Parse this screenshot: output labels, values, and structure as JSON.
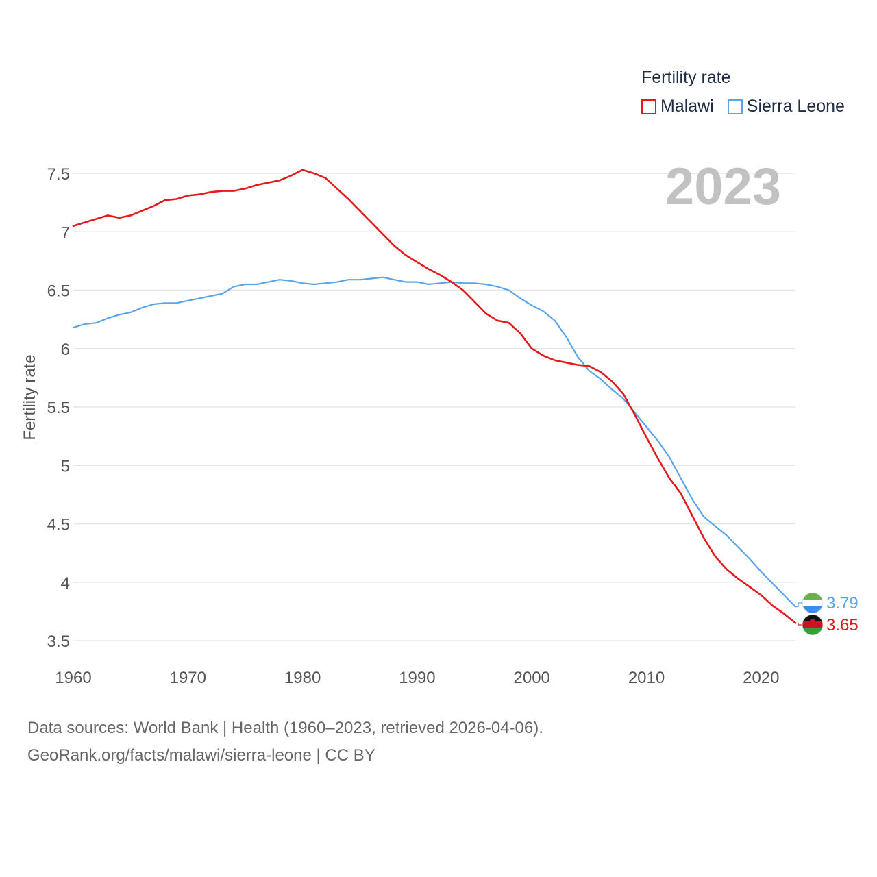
{
  "chart_data": {
    "type": "line",
    "legend_title": "Fertility rate",
    "ylabel": "Fertility rate",
    "xlabel": "",
    "year_label": "2023",
    "ylim": [
      3.5,
      7.5
    ],
    "xlim": [
      1960,
      2023
    ],
    "yticks": [
      3.5,
      4,
      4.5,
      5,
      5.5,
      6,
      6.5,
      7,
      7.5
    ],
    "ytick_labels": [
      "3.5",
      "4",
      "4.5",
      "5",
      "5.5",
      "6",
      "6.5",
      "7",
      "7.5"
    ],
    "xticks": [
      1960,
      1970,
      1980,
      1990,
      2000,
      2010,
      2020
    ],
    "xtick_labels": [
      "1960",
      "1970",
      "1980",
      "1990",
      "2000",
      "2010",
      "2020"
    ],
    "legend_position": "top-right",
    "grid": true,
    "x": [
      1960,
      1961,
      1962,
      1963,
      1964,
      1965,
      1966,
      1967,
      1968,
      1969,
      1970,
      1971,
      1972,
      1973,
      1974,
      1975,
      1976,
      1977,
      1978,
      1979,
      1980,
      1981,
      1982,
      1983,
      1984,
      1985,
      1986,
      1987,
      1988,
      1989,
      1990,
      1991,
      1992,
      1993,
      1994,
      1995,
      1996,
      1997,
      1998,
      1999,
      2000,
      2001,
      2002,
      2003,
      2004,
      2005,
      2006,
      2007,
      2008,
      2009,
      2010,
      2011,
      2012,
      2013,
      2014,
      2015,
      2016,
      2017,
      2018,
      2019,
      2020,
      2021,
      2022,
      2023
    ],
    "series": [
      {
        "name": "Malawi",
        "color": "#e41a1c",
        "end_label": "3.65",
        "flag": "malawi-flag-icon",
        "values": [
          7.05,
          7.08,
          7.11,
          7.14,
          7.12,
          7.14,
          7.18,
          7.22,
          7.27,
          7.28,
          7.31,
          7.32,
          7.34,
          7.35,
          7.35,
          7.37,
          7.4,
          7.42,
          7.44,
          7.48,
          7.53,
          7.5,
          7.46,
          7.37,
          7.28,
          7.18,
          7.08,
          6.98,
          6.88,
          6.8,
          6.74,
          6.68,
          6.63,
          6.57,
          6.5,
          6.4,
          6.3,
          6.24,
          6.22,
          6.13,
          6.0,
          5.94,
          5.9,
          5.88,
          5.86,
          5.85,
          5.8,
          5.72,
          5.61,
          5.43,
          5.24,
          5.06,
          4.89,
          4.76,
          4.57,
          4.38,
          4.22,
          4.11,
          4.03,
          3.96,
          3.89,
          3.8,
          3.73,
          3.65
        ]
      },
      {
        "name": "Sierra Leone",
        "color": "#5aa5e8",
        "end_label": "3.79",
        "flag": "sierra-leone-flag-icon",
        "values": [
          6.18,
          6.21,
          6.22,
          6.26,
          6.29,
          6.31,
          6.35,
          6.38,
          6.39,
          6.39,
          6.41,
          6.43,
          6.45,
          6.47,
          6.53,
          6.55,
          6.55,
          6.57,
          6.59,
          6.58,
          6.56,
          6.55,
          6.56,
          6.57,
          6.59,
          6.59,
          6.6,
          6.61,
          6.59,
          6.57,
          6.57,
          6.55,
          6.56,
          6.57,
          6.56,
          6.56,
          6.55,
          6.53,
          6.5,
          6.43,
          6.37,
          6.32,
          6.24,
          6.1,
          5.93,
          5.81,
          5.74,
          5.65,
          5.57,
          5.45,
          5.33,
          5.21,
          5.07,
          4.89,
          4.71,
          4.56,
          4.48,
          4.4,
          4.3,
          4.2,
          4.09,
          3.99,
          3.89,
          3.79
        ]
      }
    ]
  },
  "footer": {
    "line1": "Data sources: World Bank | Health (1960–2023, retrieved 2026-04-06).",
    "line2": "GeoRank.org/facts/malawi/sierra-leone | CC BY"
  }
}
